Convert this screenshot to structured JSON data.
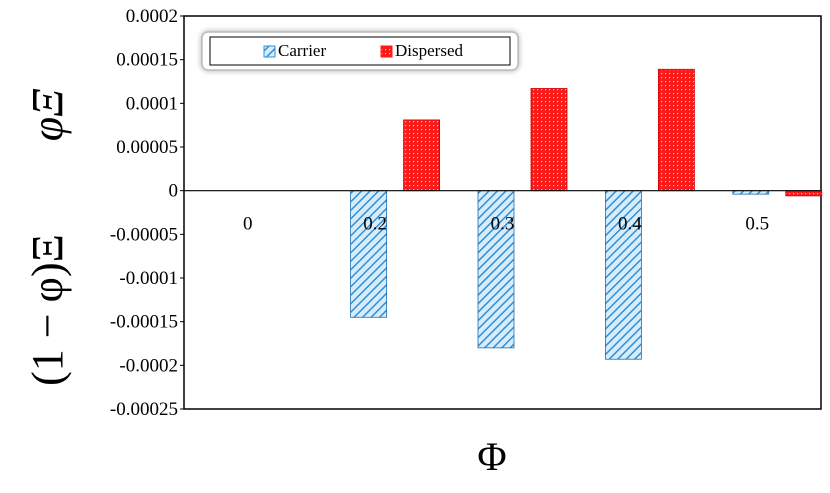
{
  "chart_data": {
    "type": "bar",
    "categories": [
      "0",
      "0.2",
      "0.3",
      "0.4",
      "0.5"
    ],
    "series": [
      {
        "name": "Carrier",
        "color": "#2f8fd6",
        "pattern": "diagonal-hatch",
        "values": [
          0,
          -0.000145,
          -0.00018,
          -0.000193,
          -4e-06
        ]
      },
      {
        "name": "Dispersed",
        "color": "#ff1a1a",
        "pattern": "dotted",
        "values": [
          0,
          8.1e-05,
          0.000117,
          0.000139,
          -6e-06
        ]
      }
    ],
    "xlabel": "Φ",
    "ylabel_top": "φΞ",
    "ylabel_bottom": "(1 − φ)Ξ",
    "ylim": [
      -0.00025,
      0.0002
    ],
    "yticks": [
      "0.0002",
      "0.00015",
      "0.0001",
      "0.00005",
      "0",
      "-0.00005",
      "-0.0001",
      "-0.00015",
      "-0.0002",
      "-0.00025"
    ],
    "ytick_values": [
      0.0002,
      0.00015,
      0.0001,
      5e-05,
      0,
      -5e-05,
      -0.0001,
      -0.00015,
      -0.0002,
      -0.00025
    ],
    "legend_position": "top-left",
    "grid": false
  }
}
